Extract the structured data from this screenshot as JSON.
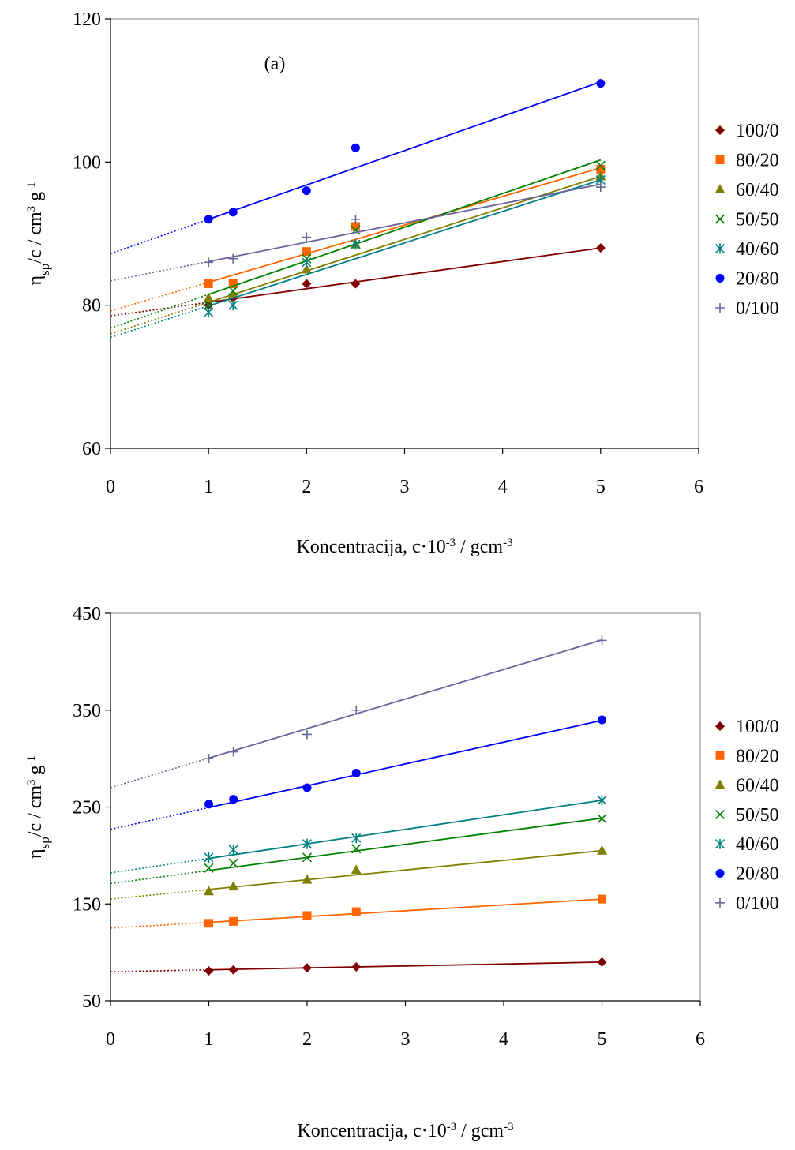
{
  "chart_data": [
    {
      "type": "scatter",
      "panel_label": "(a)",
      "title": "",
      "xlabel": "Koncentracija, c·10",
      "xlabel_sup": "-3",
      "xlabel_tail": " / gcm",
      "xlabel_tail_sup": "-3",
      "ylabel": "η",
      "ylabel_sub": "sp",
      "ylabel_mid": "/c / cm",
      "ylabel_sup1": "3",
      "ylabel_mid2": " g",
      "ylabel_sup2": "-1",
      "xlim": [
        0,
        6
      ],
      "ylim": [
        60,
        120
      ],
      "xticks": [
        0,
        1,
        2,
        3,
        4,
        5,
        6
      ],
      "yticks": [
        60,
        80,
        100,
        120
      ],
      "xtick_labels": [
        "0",
        "1",
        "2",
        "3",
        "4",
        "5",
        "6"
      ],
      "ytick_labels": [
        "60",
        "80",
        "100",
        "120"
      ],
      "grid": false,
      "legend_position": "right",
      "x": [
        1,
        1.25,
        2,
        2.5,
        5
      ],
      "series": [
        {
          "name": "100/0",
          "marker": "diamond",
          "color": "#800000",
          "values": [
            80,
            81,
            83,
            83,
            88
          ],
          "fit": [
            1.9,
            78.5
          ]
        },
        {
          "name": "80/20",
          "marker": "square",
          "color": "#ff6600",
          "values": [
            83,
            83,
            87.5,
            91,
            99
          ],
          "fit": [
            4.0,
            79.2
          ]
        },
        {
          "name": "60/40",
          "marker": "triangle",
          "color": "#808000",
          "values": [
            81,
            81.5,
            85,
            88.5,
            98
          ],
          "fit": [
            4.4,
            76.0
          ]
        },
        {
          "name": "50/50",
          "marker": "x",
          "color": "#008000",
          "values": [
            80,
            82,
            86.5,
            90.5,
            99.5
          ],
          "fit": [
            4.7,
            76.8
          ]
        },
        {
          "name": "40/60",
          "marker": "star",
          "color": "#008080",
          "values": [
            79,
            80,
            86,
            88.5,
            97.5
          ],
          "fit": [
            4.4,
            75.5
          ]
        },
        {
          "name": "20/80",
          "marker": "circle",
          "color": "#0000ff",
          "values": [
            92,
            93,
            96,
            102,
            111
          ],
          "fit": [
            4.8,
            87.2
          ]
        },
        {
          "name": "0/100",
          "marker": "plus",
          "color": "#666699",
          "values": [
            86,
            86.5,
            89.5,
            92,
            96.5
          ],
          "fit": [
            2.7,
            83.4
          ]
        }
      ]
    },
    {
      "type": "scatter",
      "panel_label": "",
      "title": "",
      "xlabel": "Koncentracija, c·10",
      "xlabel_sup": "-3",
      "xlabel_tail": " / gcm",
      "xlabel_tail_sup": "-3",
      "ylabel": "η",
      "ylabel_sub": "sp",
      "ylabel_mid": "/c / cm",
      "ylabel_sup1": "3",
      "ylabel_mid2": " g",
      "ylabel_sup2": "-1",
      "xlim": [
        0,
        6
      ],
      "ylim": [
        50,
        450
      ],
      "xticks": [
        0,
        1,
        2,
        3,
        4,
        5,
        6
      ],
      "yticks": [
        50,
        150,
        250,
        350,
        450
      ],
      "xtick_labels": [
        "0",
        "1",
        "2",
        "3",
        "4",
        "5",
        "6"
      ],
      "ytick_labels": [
        "50",
        "150",
        "250",
        "350",
        "450"
      ],
      "grid": false,
      "legend_position": "right",
      "x": [
        1,
        1.25,
        2,
        2.5,
        5
      ],
      "series": [
        {
          "name": "100/0",
          "marker": "diamond",
          "color": "#800000",
          "values": [
            81,
            82,
            84,
            85,
            90
          ],
          "fit": [
            2.0,
            80.0
          ]
        },
        {
          "name": "80/20",
          "marker": "square",
          "color": "#ff6600",
          "values": [
            130,
            132,
            138,
            142,
            155
          ],
          "fit": [
            6.0,
            125.0
          ]
        },
        {
          "name": "60/40",
          "marker": "triangle",
          "color": "#808000",
          "values": [
            163,
            168,
            175,
            185,
            205
          ],
          "fit": [
            10.0,
            155.0
          ]
        },
        {
          "name": "50/50",
          "marker": "x",
          "color": "#008000",
          "values": [
            187,
            192,
            198,
            207,
            238
          ],
          "fit": [
            13.5,
            171.0
          ]
        },
        {
          "name": "40/60",
          "marker": "star",
          "color": "#008080",
          "values": [
            198,
            206,
            212,
            218,
            257
          ],
          "fit": [
            15.0,
            182.0
          ]
        },
        {
          "name": "20/80",
          "marker": "circle",
          "color": "#0000ff",
          "values": [
            253,
            258,
            270,
            285,
            340
          ],
          "fit": [
            22.5,
            227.0
          ]
        },
        {
          "name": "0/100",
          "marker": "plus",
          "color": "#666699",
          "values": [
            300,
            307,
            325,
            350,
            422
          ],
          "fit": [
            30.5,
            270.0
          ]
        }
      ]
    }
  ]
}
